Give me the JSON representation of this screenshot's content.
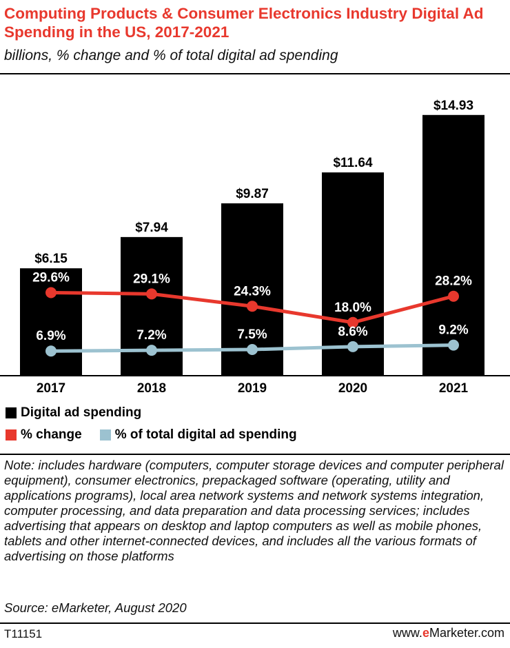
{
  "title": "Computing Products & Consumer Electronics Industry Digital Ad Spending in the US, 2017-2021",
  "subtitle": "billions, % change and % of total digital ad spending",
  "legend": {
    "spending": "Digital ad spending",
    "change": "% change",
    "share": "% of total digital ad spending"
  },
  "colors": {
    "title": "#e8382d",
    "bars": "#000000",
    "change_line": "#e8382d",
    "share_line": "#9cc2d0"
  },
  "note": "Note: includes hardware (computers, computer storage devices and computer peripheral equipment), consumer electronics, prepackaged software (operating, utility and applications programs), local area network systems and network systems integration, computer processing, and data preparation and data processing services; includes advertising that appears on desktop and laptop computers as well as mobile phones, tablets and other internet-connected devices, and includes all the various formats of advertising on those platforms",
  "source": "Source: eMarketer, August 2020",
  "chart_id": "T11151",
  "brand": {
    "prefix": "www.",
    "name": "eMarketer",
    "suffix": ".com"
  },
  "chart_data": {
    "type": "bar",
    "categories": [
      "2017",
      "2018",
      "2019",
      "2020",
      "2021"
    ],
    "series": [
      {
        "name": "Digital ad spending",
        "values": [
          6.15,
          7.94,
          9.87,
          11.64,
          14.93
        ],
        "labels": [
          "$6.15",
          "$7.94",
          "$9.87",
          "$11.64",
          "$14.93"
        ]
      },
      {
        "name": "% change",
        "type": "line",
        "values": [
          29.6,
          29.1,
          24.3,
          18.0,
          28.2
        ],
        "labels": [
          "29.6%",
          "29.1%",
          "24.3%",
          "18.0%",
          "28.2%"
        ]
      },
      {
        "name": "% of total digital ad spending",
        "type": "line",
        "values": [
          6.9,
          7.2,
          7.5,
          8.6,
          9.2
        ],
        "labels": [
          "6.9%",
          "7.2%",
          "7.5%",
          "8.6%",
          "9.2%"
        ]
      }
    ],
    "legend_position": "bottom-left",
    "grid": false
  }
}
